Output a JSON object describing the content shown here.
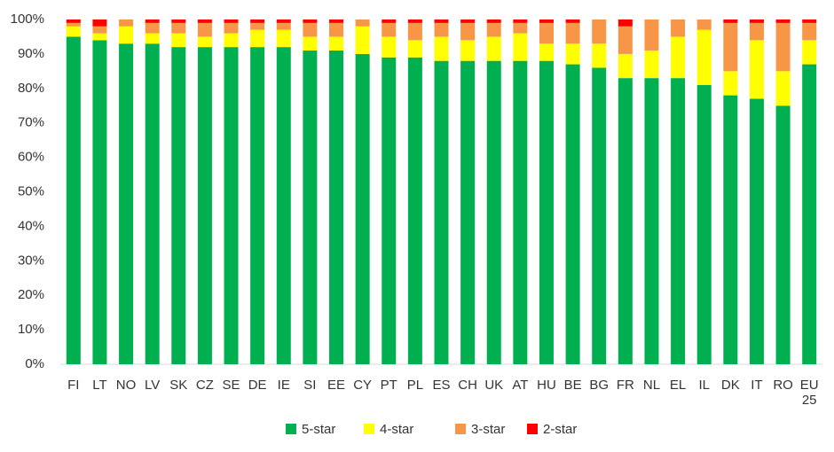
{
  "chart_data": {
    "type": "stacked_bar",
    "categories": [
      "FI",
      "LT",
      "NO",
      "LV",
      "SK",
      "CZ",
      "SE",
      "DE",
      "IE",
      "SI",
      "EE",
      "CY",
      "PT",
      "PL",
      "ES",
      "CH",
      "UK",
      "AT",
      "HU",
      "BE",
      "BG",
      "FR",
      "NL",
      "EL",
      "IL",
      "DK",
      "IT",
      "RO",
      "EU 25"
    ],
    "series": [
      {
        "name": "5-star",
        "color": "#00b050",
        "values": [
          95,
          94,
          93,
          93,
          92,
          92,
          92,
          92,
          92,
          91,
          91,
          90,
          89,
          89,
          88,
          88,
          88,
          88,
          88,
          87,
          86,
          83,
          83,
          83,
          81,
          78,
          77,
          75,
          87
        ]
      },
      {
        "name": "4-star",
        "color": "#ffff00",
        "values": [
          3,
          2,
          5,
          3,
          4,
          3,
          4,
          5,
          5,
          4,
          4,
          8,
          6,
          5,
          7,
          6,
          7,
          8,
          5,
          6,
          7,
          7,
          8,
          12,
          16,
          7,
          17,
          10,
          7
        ]
      },
      {
        "name": "3-star",
        "color": "#f79646",
        "values": [
          1,
          2,
          2,
          3,
          3,
          4,
          3,
          2,
          2,
          4,
          4,
          2,
          4,
          5,
          4,
          5,
          4,
          3,
          6,
          6,
          7,
          8,
          9,
          5,
          3,
          14,
          5,
          14,
          5
        ]
      },
      {
        "name": "2-star",
        "color": "#ff0000",
        "values": [
          1,
          2,
          0,
          1,
          1,
          1,
          1,
          1,
          1,
          1,
          1,
          0,
          1,
          1,
          1,
          1,
          1,
          1,
          1,
          1,
          0,
          2,
          0,
          0,
          0,
          1,
          1,
          1,
          1
        ]
      }
    ],
    "ylim": [
      0,
      100
    ],
    "yticks": [
      {
        "value": 0,
        "label": "0%"
      },
      {
        "value": 10,
        "label": "10%"
      },
      {
        "value": 20,
        "label": "20%"
      },
      {
        "value": 30,
        "label": "30%"
      },
      {
        "value": 40,
        "label": "40%"
      },
      {
        "value": 50,
        "label": "50%"
      },
      {
        "value": 60,
        "label": "60%"
      },
      {
        "value": 70,
        "label": "70%"
      },
      {
        "value": 80,
        "label": "80%"
      },
      {
        "value": 90,
        "label": "90%"
      },
      {
        "value": 100,
        "label": "100%"
      }
    ],
    "legend": "bottom"
  }
}
